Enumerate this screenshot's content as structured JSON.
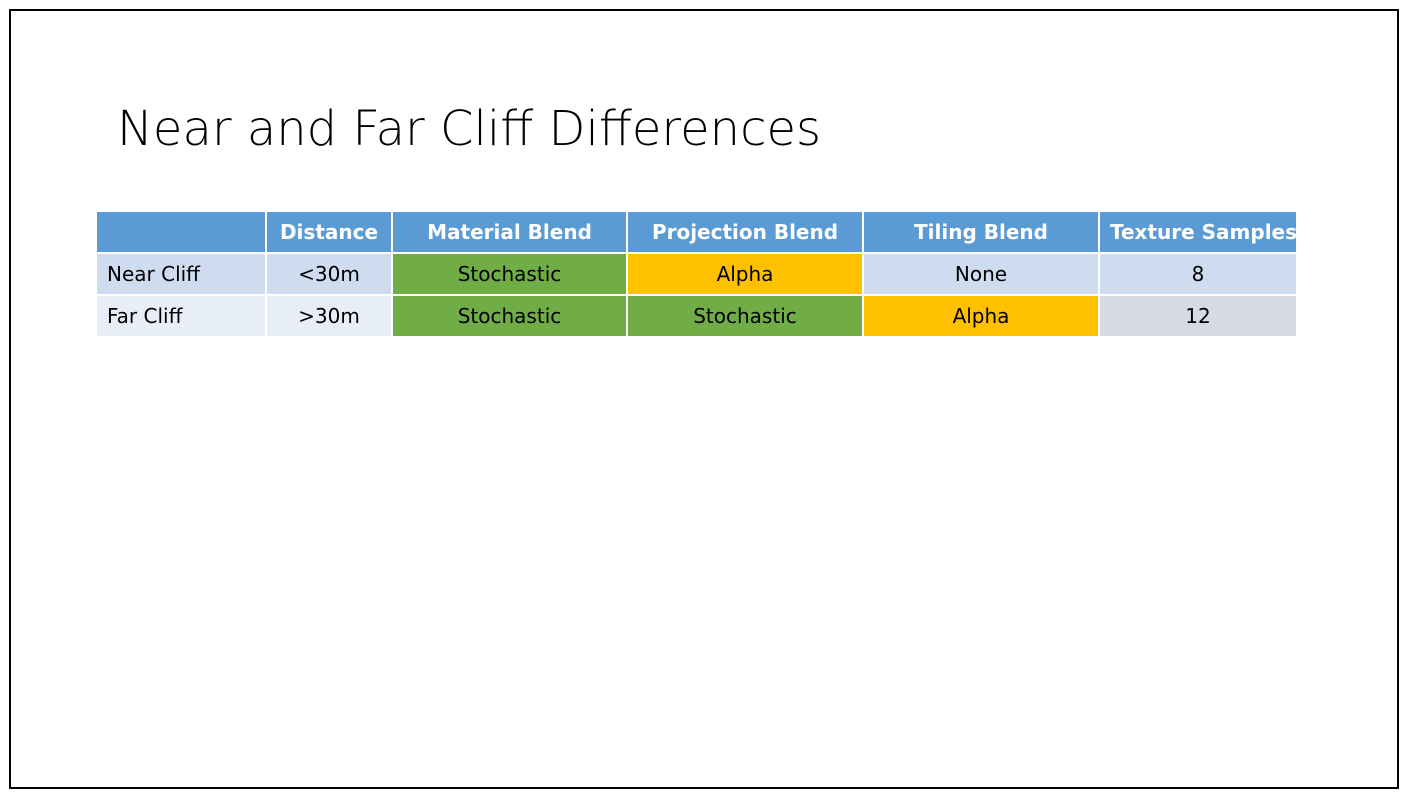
{
  "slide": {
    "title": "Near and Far Cliff Differences"
  },
  "colors": {
    "header": "#5b9bd5",
    "stochastic": "#70ad47",
    "alpha": "#ffc000",
    "row_band_1": "#cfdbee",
    "row_band_2": "#e8eef7"
  },
  "table": {
    "headers": [
      "",
      "Distance",
      "Material Blend",
      "Projection Blend",
      "Tiling Blend",
      "Texture Samples"
    ],
    "rows": [
      {
        "cells": [
          "Near Cliff",
          "<30m",
          "Stochastic",
          "Alpha",
          "None",
          "8"
        ],
        "fills": [
          null,
          null,
          "#70ad47",
          "#ffc000",
          null,
          null
        ]
      },
      {
        "cells": [
          "Far Cliff",
          ">30m",
          "Stochastic",
          "Stochastic",
          "Alpha",
          "12"
        ],
        "fills": [
          null,
          null,
          "#70ad47",
          "#70ad47",
          "#ffc000",
          null
        ]
      }
    ]
  }
}
